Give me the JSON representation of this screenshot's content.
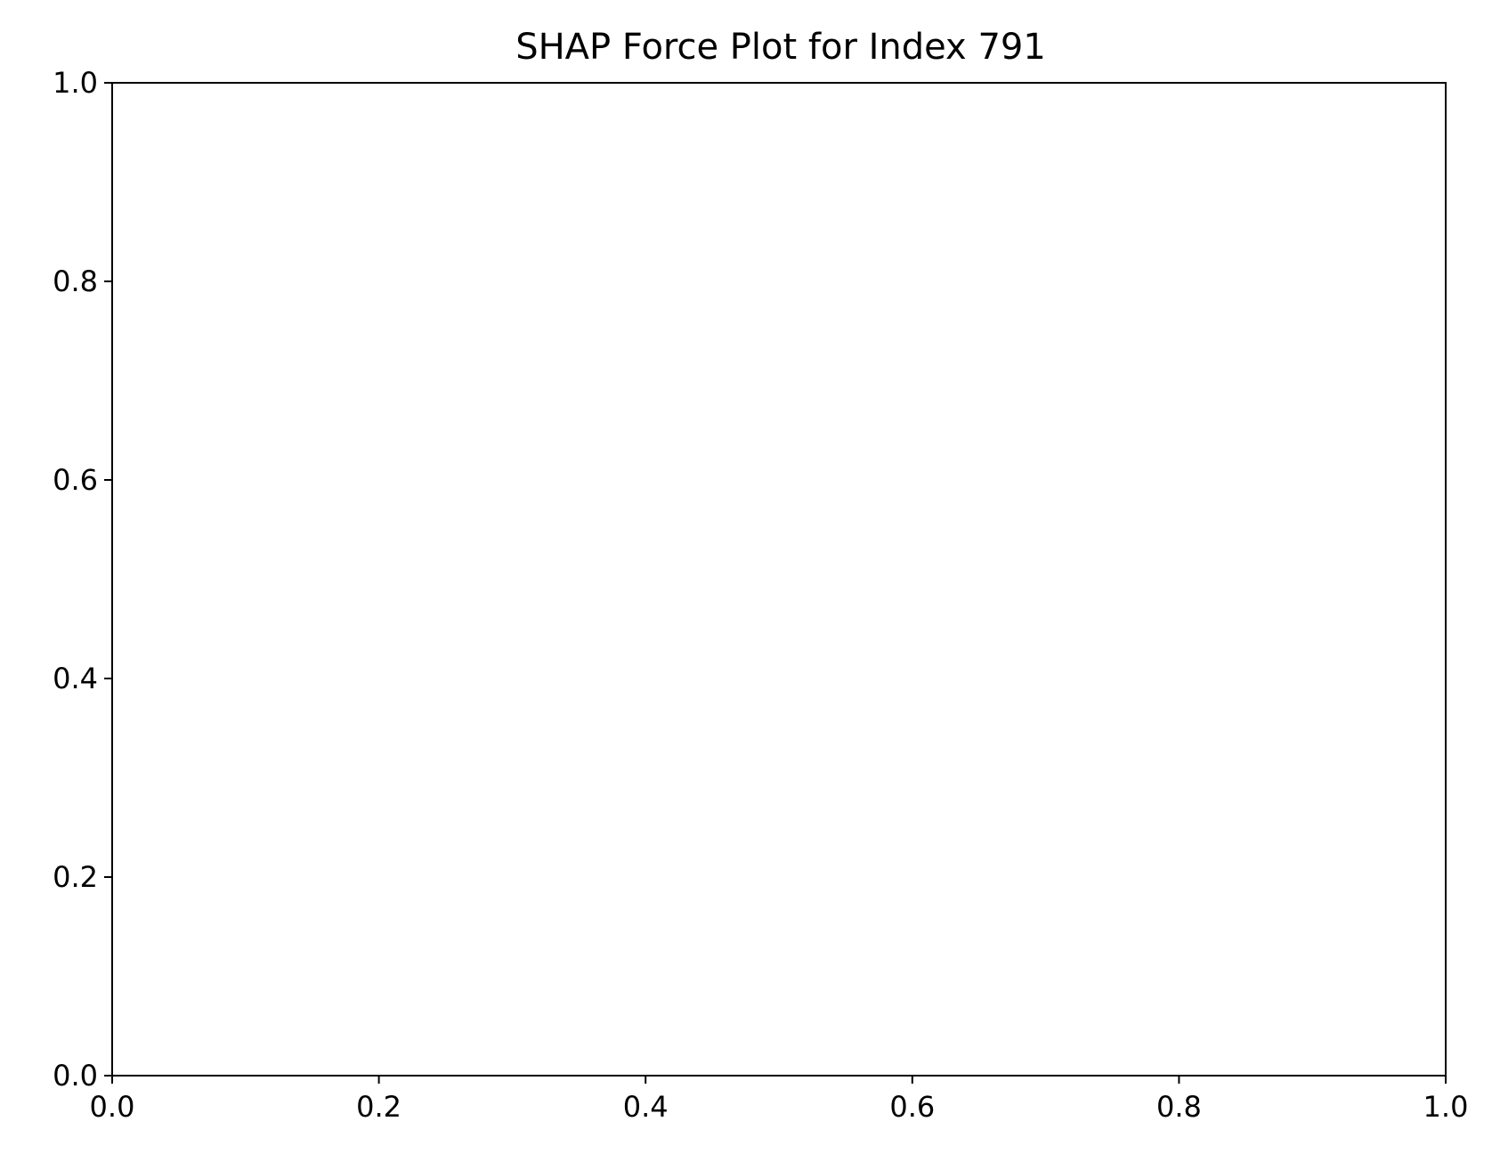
{
  "chart_data": {
    "type": "scatter",
    "title": "SHAP Force Plot for Index 791",
    "xlabel": "",
    "ylabel": "",
    "xlim": [
      0.0,
      1.0
    ],
    "ylim": [
      0.0,
      1.0
    ],
    "x_ticks": [
      "0.0",
      "0.2",
      "0.4",
      "0.6",
      "0.8",
      "1.0"
    ],
    "y_ticks": [
      "0.0",
      "0.2",
      "0.4",
      "0.6",
      "0.8",
      "1.0"
    ],
    "grid": false,
    "legend": "none",
    "series": []
  }
}
